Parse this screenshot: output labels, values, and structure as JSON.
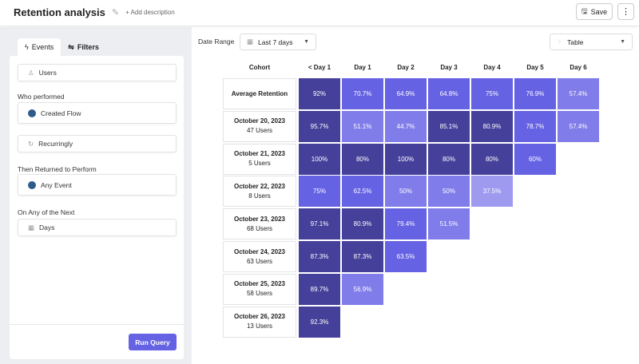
{
  "header": {
    "title": "Retention analysis",
    "add_description": "+ Add description",
    "save_label": "Save",
    "more_label": "⋮"
  },
  "sidebar": {
    "tabs": [
      {
        "label": "Events",
        "icon": "bolt-icon"
      },
      {
        "label": "Filters",
        "icon": "sliders-icon"
      }
    ],
    "users_field": "Users",
    "who_performed_label": "Who performed",
    "who_performed_event": "Created Flow",
    "recurring_field": "Recurringly",
    "returned_label": "Then Returned to Perform",
    "returned_event": "Any Event",
    "next_label": "On Any of the Next",
    "period_field": "Days",
    "run_query_label": "Run Query",
    "event_color": "#2f5b8c"
  },
  "controls": {
    "date_range_label": "Date Range",
    "date_range_value": "Last 7 days",
    "view_value": "Table"
  },
  "colors": {
    "dark": "#45409a",
    "mid": "#6562e3",
    "light": "#807ce9",
    "lightest": "#9e9aef",
    "accent": "#6562e3"
  },
  "chart_data": {
    "type": "table",
    "columns": [
      "Cohort",
      "< Day 1",
      "Day 1",
      "Day 2",
      "Day 3",
      "Day 4",
      "Day 5",
      "Day 6"
    ],
    "rows": [
      {
        "cohort": "Average Retention",
        "users": "",
        "values": [
          "92%",
          "70.7%",
          "64.9%",
          "64.8%",
          "75%",
          "76.9%",
          "57.4%"
        ]
      },
      {
        "cohort": "October 20, 2023",
        "users": "47 Users",
        "values": [
          "95.7%",
          "51.1%",
          "44.7%",
          "85.1%",
          "80.9%",
          "78.7%",
          "57.4%"
        ]
      },
      {
        "cohort": "October 21, 2023",
        "users": "5 Users",
        "values": [
          "100%",
          "80%",
          "100%",
          "80%",
          "80%",
          "60%"
        ]
      },
      {
        "cohort": "October 22, 2023",
        "users": "8 Users",
        "values": [
          "75%",
          "62.5%",
          "50%",
          "50%",
          "37.5%"
        ]
      },
      {
        "cohort": "October 23, 2023",
        "users": "68 Users",
        "values": [
          "97.1%",
          "80.9%",
          "79.4%",
          "51.5%"
        ]
      },
      {
        "cohort": "October 24, 2023",
        "users": "63 Users",
        "values": [
          "87.3%",
          "87.3%",
          "63.5%"
        ]
      },
      {
        "cohort": "October 25, 2023",
        "users": "58 Users",
        "values": [
          "89.7%",
          "56.9%"
        ]
      },
      {
        "cohort": "October 26, 2023",
        "users": "13 Users",
        "values": [
          "92.3%"
        ]
      }
    ]
  }
}
